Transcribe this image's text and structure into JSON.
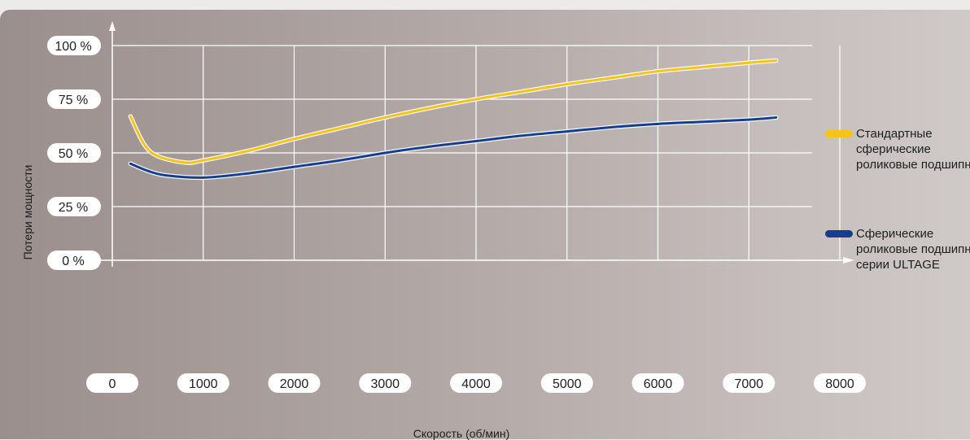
{
  "chart_data": {
    "type": "line",
    "xlabel": "Скорость (об/мин)",
    "ylabel": "Потери мощности",
    "xlim": [
      0,
      8000
    ],
    "ylim": [
      0,
      100
    ],
    "x_ticks": [
      0,
      1000,
      2000,
      3000,
      4000,
      5000,
      6000,
      7000,
      8000
    ],
    "x_tick_labels": [
      "0",
      "1000",
      "2000",
      "3000",
      "4000",
      "5000",
      "6000",
      "7000",
      "8000"
    ],
    "y_ticks": [
      0,
      25,
      50,
      75,
      100
    ],
    "y_tick_labels": [
      "0 %",
      "25 %",
      "50 %",
      "75 %",
      "100 %"
    ],
    "grid": true,
    "legend_position": "right",
    "series": [
      {
        "name": "Стандартные сферические роликовые подшипники",
        "color": "#f5c418",
        "points": [
          [
            200,
            67
          ],
          [
            350,
            54
          ],
          [
            500,
            48.5
          ],
          [
            800,
            45.5
          ],
          [
            1000,
            46.5
          ],
          [
            1500,
            51
          ],
          [
            2000,
            56.5
          ],
          [
            2500,
            61.5
          ],
          [
            3000,
            66.5
          ],
          [
            3500,
            71
          ],
          [
            4000,
            75
          ],
          [
            4500,
            78.5
          ],
          [
            5000,
            82
          ],
          [
            5500,
            85
          ],
          [
            6000,
            88
          ],
          [
            6500,
            90
          ],
          [
            7000,
            92
          ],
          [
            7300,
            93
          ]
        ]
      },
      {
        "name": "Сферические роликовые подшипники серии ULTAGE",
        "color": "#143f90",
        "points": [
          [
            200,
            45
          ],
          [
            400,
            41.5
          ],
          [
            600,
            39.5
          ],
          [
            1000,
            38.5
          ],
          [
            1500,
            40.5
          ],
          [
            2000,
            43.5
          ],
          [
            2500,
            46.5
          ],
          [
            3000,
            50
          ],
          [
            3500,
            53
          ],
          [
            4000,
            55.5
          ],
          [
            4500,
            58
          ],
          [
            5000,
            60
          ],
          [
            5500,
            62
          ],
          [
            6000,
            63.5
          ],
          [
            6500,
            64.5
          ],
          [
            7000,
            65.5
          ],
          [
            7300,
            66.5
          ]
        ]
      }
    ]
  }
}
